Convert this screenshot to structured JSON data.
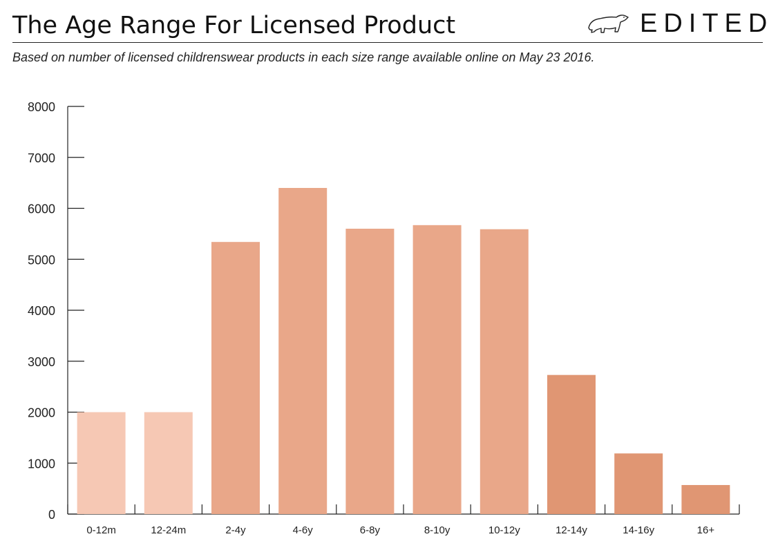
{
  "header": {
    "title": "The Age Range For Licensed Product",
    "subtitle": "Based on number of licensed childrenswear products in each size range available online on May 23 2016.",
    "brand": "EDITED",
    "brand_icon": "polar-bear-icon"
  },
  "chart_data": {
    "type": "bar",
    "title": "The Age Range For Licensed Product",
    "xlabel": "",
    "ylabel": "",
    "ylim": [
      0,
      8000
    ],
    "yticks": [
      0,
      1000,
      2000,
      3000,
      4000,
      5000,
      6000,
      7000,
      8000
    ],
    "categories": [
      "0-12m",
      "12-24m",
      "2-4y",
      "4-6y",
      "6-8y",
      "8-10y",
      "10-12y",
      "12-14y",
      "14-16y",
      "16+"
    ],
    "values": [
      2000,
      2000,
      5340,
      6400,
      5600,
      5670,
      5590,
      2730,
      1190,
      570
    ],
    "colors": [
      "#f6c8b4",
      "#f6c8b4",
      "#e9a789",
      "#e9a789",
      "#e9a789",
      "#e9a789",
      "#e9a789",
      "#e09673",
      "#e09673",
      "#e09673"
    ],
    "grid": false,
    "legend": "none"
  }
}
